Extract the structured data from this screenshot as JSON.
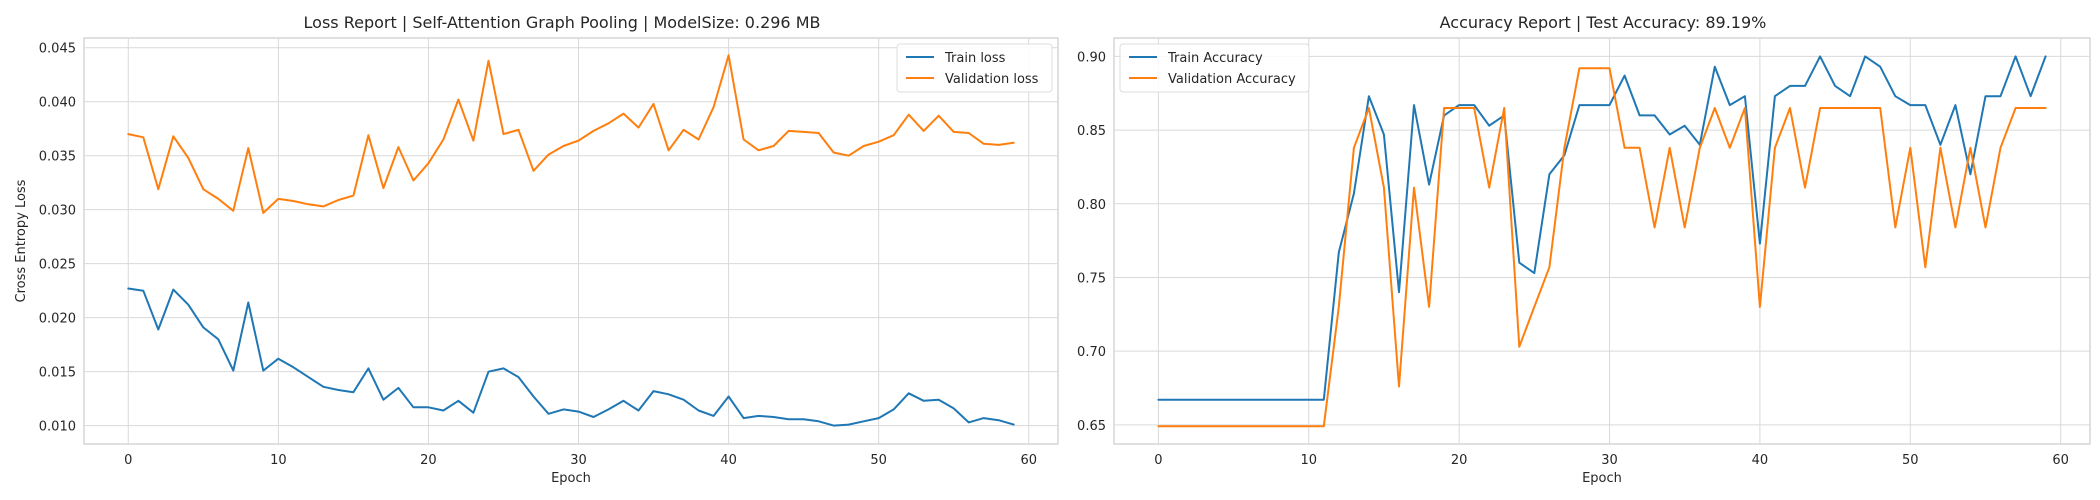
{
  "chart_data": [
    {
      "type": "line",
      "title": "Loss Report | Self-Attention Graph Pooling | ModelSize: 0.296 MB",
      "xlabel": "Epoch",
      "ylabel": "Cross Entropy Loss",
      "xlim": [
        -2.95,
        61.95
      ],
      "ylim": [
        0.0083,
        0.0459
      ],
      "xticks": [
        0,
        10,
        20,
        30,
        40,
        50,
        60
      ],
      "yticks": [
        0.01,
        0.015,
        0.02,
        0.025,
        0.03,
        0.035,
        0.04,
        0.045
      ],
      "xtick_labels": [
        "0",
        "10",
        "20",
        "30",
        "40",
        "50",
        "60"
      ],
      "ytick_labels": [
        "0.010",
        "0.015",
        "0.020",
        "0.025",
        "0.030",
        "0.035",
        "0.040",
        "0.045"
      ],
      "grid": true,
      "legend_position": "top-right",
      "x": [
        0,
        1,
        2,
        3,
        4,
        5,
        6,
        7,
        8,
        9,
        10,
        11,
        12,
        13,
        14,
        15,
        16,
        17,
        18,
        19,
        20,
        21,
        22,
        23,
        24,
        25,
        26,
        27,
        28,
        29,
        30,
        31,
        32,
        33,
        34,
        35,
        36,
        37,
        38,
        39,
        40,
        41,
        42,
        43,
        44,
        45,
        46,
        47,
        48,
        49,
        50,
        51,
        52,
        53,
        54,
        55,
        56,
        57,
        58,
        59
      ],
      "series": [
        {
          "name": "Train loss",
          "color": "#1f77b4",
          "values": [
            0.0227,
            0.0225,
            0.0189,
            0.0226,
            0.0212,
            0.0191,
            0.018,
            0.0151,
            0.0214,
            0.0151,
            0.0162,
            0.0154,
            0.0145,
            0.0136,
            0.0133,
            0.0131,
            0.0153,
            0.0124,
            0.0135,
            0.0117,
            0.0117,
            0.0114,
            0.0123,
            0.0112,
            0.015,
            0.0153,
            0.0145,
            0.0127,
            0.0111,
            0.0115,
            0.0113,
            0.0108,
            0.0115,
            0.0123,
            0.0114,
            0.0132,
            0.0129,
            0.0124,
            0.0114,
            0.0109,
            0.0127,
            0.0107,
            0.0109,
            0.0108,
            0.0106,
            0.0106,
            0.0104,
            0.01,
            0.0101,
            0.0104,
            0.0107,
            0.0115,
            0.013,
            0.0123,
            0.0124,
            0.0116,
            0.0103,
            0.0107,
            0.0105,
            0.0101
          ]
        },
        {
          "name": "Validation loss",
          "color": "#ff7f0e",
          "values": [
            0.037,
            0.0367,
            0.0319,
            0.0368,
            0.0348,
            0.0319,
            0.031,
            0.0299,
            0.0357,
            0.0297,
            0.031,
            0.0308,
            0.0305,
            0.0303,
            0.0309,
            0.0313,
            0.0369,
            0.032,
            0.0358,
            0.0327,
            0.0343,
            0.0365,
            0.0402,
            0.0364,
            0.0438,
            0.037,
            0.0374,
            0.0336,
            0.0351,
            0.0359,
            0.0364,
            0.0373,
            0.038,
            0.0389,
            0.0376,
            0.0398,
            0.0355,
            0.0374,
            0.0365,
            0.0395,
            0.0443,
            0.0365,
            0.0355,
            0.0359,
            0.0373,
            0.0372,
            0.0371,
            0.0353,
            0.035,
            0.0359,
            0.0363,
            0.0369,
            0.0388,
            0.0373,
            0.0387,
            0.0372,
            0.0371,
            0.0361,
            0.036,
            0.0362
          ]
        }
      ]
    },
    {
      "type": "line",
      "title": "Accuracy Report | Test Accuracy: 89.19%",
      "xlabel": "Epoch",
      "ylabel": "",
      "xlim": [
        -2.95,
        61.95
      ],
      "ylim": [
        0.637,
        0.9125
      ],
      "xticks": [
        0,
        10,
        20,
        30,
        40,
        50,
        60
      ],
      "yticks": [
        0.65,
        0.7,
        0.75,
        0.8,
        0.85,
        0.9
      ],
      "xtick_labels": [
        "0",
        "10",
        "20",
        "30",
        "40",
        "50",
        "60"
      ],
      "ytick_labels": [
        "0.65",
        "0.70",
        "0.75",
        "0.80",
        "0.85",
        "0.90"
      ],
      "grid": true,
      "legend_position": "top-left",
      "x": [
        0,
        1,
        2,
        3,
        4,
        5,
        6,
        7,
        8,
        9,
        10,
        11,
        12,
        13,
        14,
        15,
        16,
        17,
        18,
        19,
        20,
        21,
        22,
        23,
        24,
        25,
        26,
        27,
        28,
        29,
        30,
        31,
        32,
        33,
        34,
        35,
        36,
        37,
        38,
        39,
        40,
        41,
        42,
        43,
        44,
        45,
        46,
        47,
        48,
        49,
        50,
        51,
        52,
        53,
        54,
        55,
        56,
        57,
        58,
        59
      ],
      "series": [
        {
          "name": "Train Accuracy",
          "color": "#1f77b4",
          "values": [
            0.667,
            0.667,
            0.667,
            0.667,
            0.667,
            0.667,
            0.667,
            0.667,
            0.667,
            0.667,
            0.667,
            0.667,
            0.767,
            0.807,
            0.873,
            0.847,
            0.74,
            0.867,
            0.813,
            0.86,
            0.867,
            0.867,
            0.853,
            0.86,
            0.76,
            0.753,
            0.82,
            0.833,
            0.867,
            0.867,
            0.867,
            0.887,
            0.86,
            0.86,
            0.847,
            0.853,
            0.84,
            0.893,
            0.867,
            0.873,
            0.773,
            0.873,
            0.88,
            0.88,
            0.9,
            0.88,
            0.873,
            0.9,
            0.893,
            0.873,
            0.867,
            0.867,
            0.84,
            0.867,
            0.82,
            0.873,
            0.873,
            0.9,
            0.873,
            0.9
          ]
        },
        {
          "name": "Validation Accuracy",
          "color": "#ff7f0e",
          "values": [
            0.649,
            0.649,
            0.649,
            0.649,
            0.649,
            0.649,
            0.649,
            0.649,
            0.649,
            0.649,
            0.649,
            0.649,
            0.73,
            0.838,
            0.865,
            0.811,
            0.676,
            0.811,
            0.73,
            0.865,
            0.865,
            0.865,
            0.811,
            0.865,
            0.703,
            0.73,
            0.757,
            0.838,
            0.892,
            0.892,
            0.892,
            0.838,
            0.838,
            0.784,
            0.838,
            0.784,
            0.838,
            0.865,
            0.838,
            0.865,
            0.73,
            0.838,
            0.865,
            0.811,
            0.865,
            0.865,
            0.865,
            0.865,
            0.865,
            0.784,
            0.838,
            0.757,
            0.838,
            0.784,
            0.838,
            0.784,
            0.838,
            0.865,
            0.865,
            0.865
          ]
        }
      ]
    }
  ]
}
